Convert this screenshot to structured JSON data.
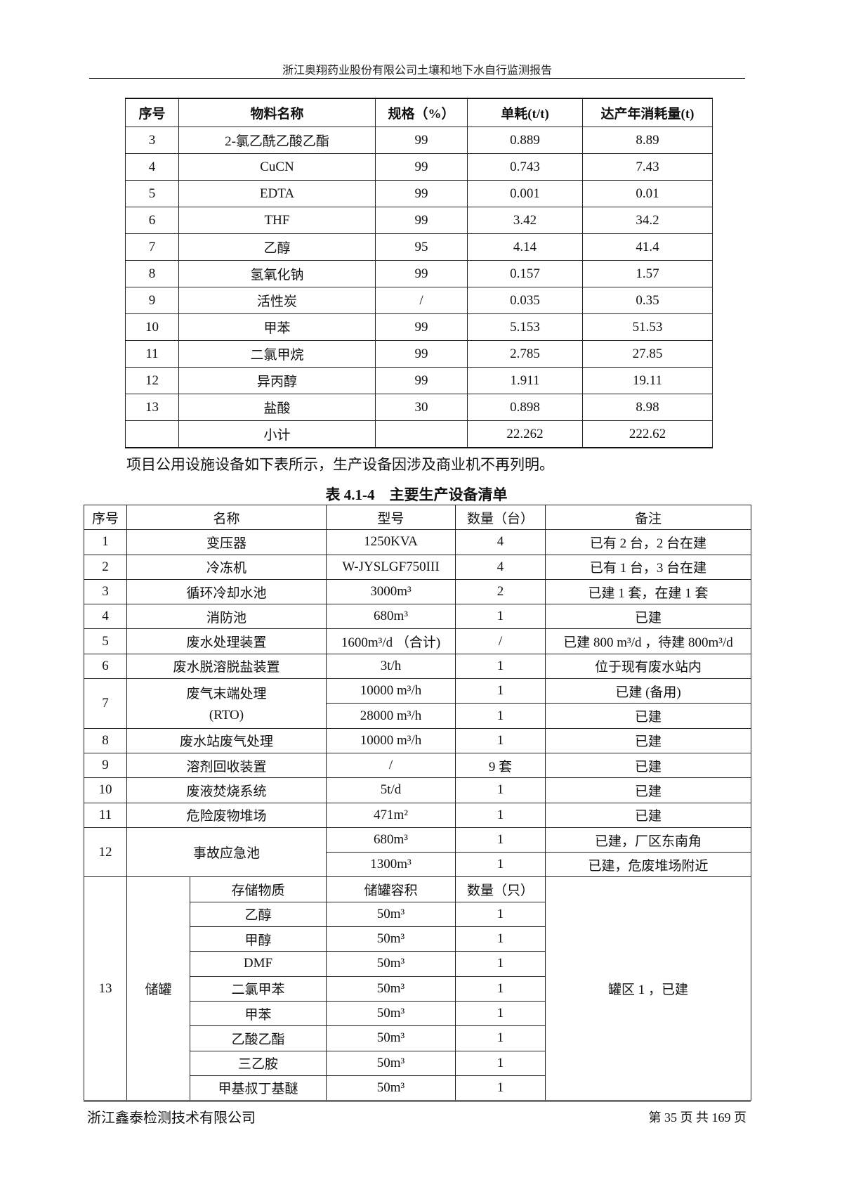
{
  "header": {
    "title": "浙江奥翔药业股份有限公司土壤和地下水自行监测报告"
  },
  "table1": {
    "columns": [
      "序号",
      "物料名称",
      "规格（%）",
      "单耗(t/t)",
      "达产年消耗量(t)"
    ],
    "rows": [
      [
        "3",
        "2-氯乙酰乙酸乙酯",
        "99",
        "0.889",
        "8.89"
      ],
      [
        "4",
        "CuCN",
        "99",
        "0.743",
        "7.43"
      ],
      [
        "5",
        "EDTA",
        "99",
        "0.001",
        "0.01"
      ],
      [
        "6",
        "THF",
        "99",
        "3.42",
        "34.2"
      ],
      [
        "7",
        "乙醇",
        "95",
        "4.14",
        "41.4"
      ],
      [
        "8",
        "氢氧化钠",
        "99",
        "0.157",
        "1.57"
      ],
      [
        "9",
        "活性炭",
        "/",
        "0.035",
        "0.35"
      ],
      [
        "10",
        "甲苯",
        "99",
        "5.153",
        "51.53"
      ],
      [
        "11",
        "二氯甲烷",
        "99",
        "2.785",
        "27.85"
      ],
      [
        "12",
        "异丙醇",
        "99",
        "1.911",
        "19.11"
      ],
      [
        "13",
        "盐酸",
        "30",
        "0.898",
        "8.98"
      ],
      [
        "",
        "小计",
        "",
        "22.262",
        "222.62"
      ]
    ]
  },
  "paragraph": "项目公用设施设备如下表所示，生产设备因涉及商业机不再列明。",
  "table2": {
    "title": "表 4.1-4　主要生产设备清单",
    "columns": [
      "序号",
      "名称",
      "型号",
      "数量（台）",
      "备注"
    ],
    "rows": [
      {
        "no": "1",
        "name": "变压器",
        "items": [
          [
            "1250KVA",
            "4",
            "已有 2 台，2 台在建"
          ]
        ]
      },
      {
        "no": "2",
        "name": "冷冻机",
        "items": [
          [
            "W-JYSLGF750III",
            "4",
            "已有 1 台，3 台在建"
          ]
        ]
      },
      {
        "no": "3",
        "name": "循环冷却水池",
        "items": [
          [
            "3000m³",
            "2",
            "已建 1 套，在建 1 套"
          ]
        ]
      },
      {
        "no": "4",
        "name": "消防池",
        "items": [
          [
            "680m³",
            "1",
            "已建"
          ]
        ]
      },
      {
        "no": "5",
        "name": "废水处理装置",
        "items": [
          [
            "1600m³/d （合计)",
            "/",
            "已建 800 m³/d ，待建 800m³/d"
          ]
        ]
      },
      {
        "no": "6",
        "name": "废水脱溶脱盐装置",
        "items": [
          [
            "3t/h",
            "1",
            "位于现有废水站内"
          ]
        ]
      },
      {
        "no": "7",
        "name": "废气末端处理",
        "name2": "(RTO)",
        "items": [
          [
            "10000 m³/h",
            "1",
            "已建 (备用)"
          ],
          [
            "28000 m³/h",
            "1",
            "已建"
          ]
        ]
      },
      {
        "no": "8",
        "name": "废水站废气处理",
        "items": [
          [
            "10000 m³/h",
            "1",
            "已建"
          ]
        ]
      },
      {
        "no": "9",
        "name": "溶剂回收装置",
        "items": [
          [
            "/",
            "9 套",
            "已建"
          ]
        ]
      },
      {
        "no": "10",
        "name": "废液焚烧系统",
        "items": [
          [
            "5t/d",
            "1",
            "已建"
          ]
        ]
      },
      {
        "no": "11",
        "name": "危险废物堆场",
        "items": [
          [
            "471m²",
            "1",
            "已建"
          ]
        ]
      },
      {
        "no": "12",
        "name": "事故应急池",
        "items": [
          [
            "680m³",
            "1",
            "已建，厂区东南角"
          ],
          [
            "1300m³",
            "1",
            "已建，危废堆场附近"
          ]
        ]
      }
    ],
    "tanks": {
      "no": "13",
      "name": "储罐",
      "remark": "罐区 1 ，已建",
      "sub_header": [
        "存储物质",
        "储罐容积",
        "数量（只）"
      ],
      "items": [
        [
          "乙醇",
          "50m³",
          "1"
        ],
        [
          "甲醇",
          "50m³",
          "1"
        ],
        [
          "DMF",
          "50m³",
          "1"
        ],
        [
          "二氯甲苯",
          "50m³",
          "1"
        ],
        [
          "甲苯",
          "50m³",
          "1"
        ],
        [
          "乙酸乙酯",
          "50m³",
          "1"
        ],
        [
          "三乙胺",
          "50m³",
          "1"
        ],
        [
          "甲基叔丁基醚",
          "50m³",
          "1"
        ]
      ]
    }
  },
  "footer": {
    "company": "浙江鑫泰检测技术有限公司",
    "page": "第 35 页 共 169 页"
  }
}
